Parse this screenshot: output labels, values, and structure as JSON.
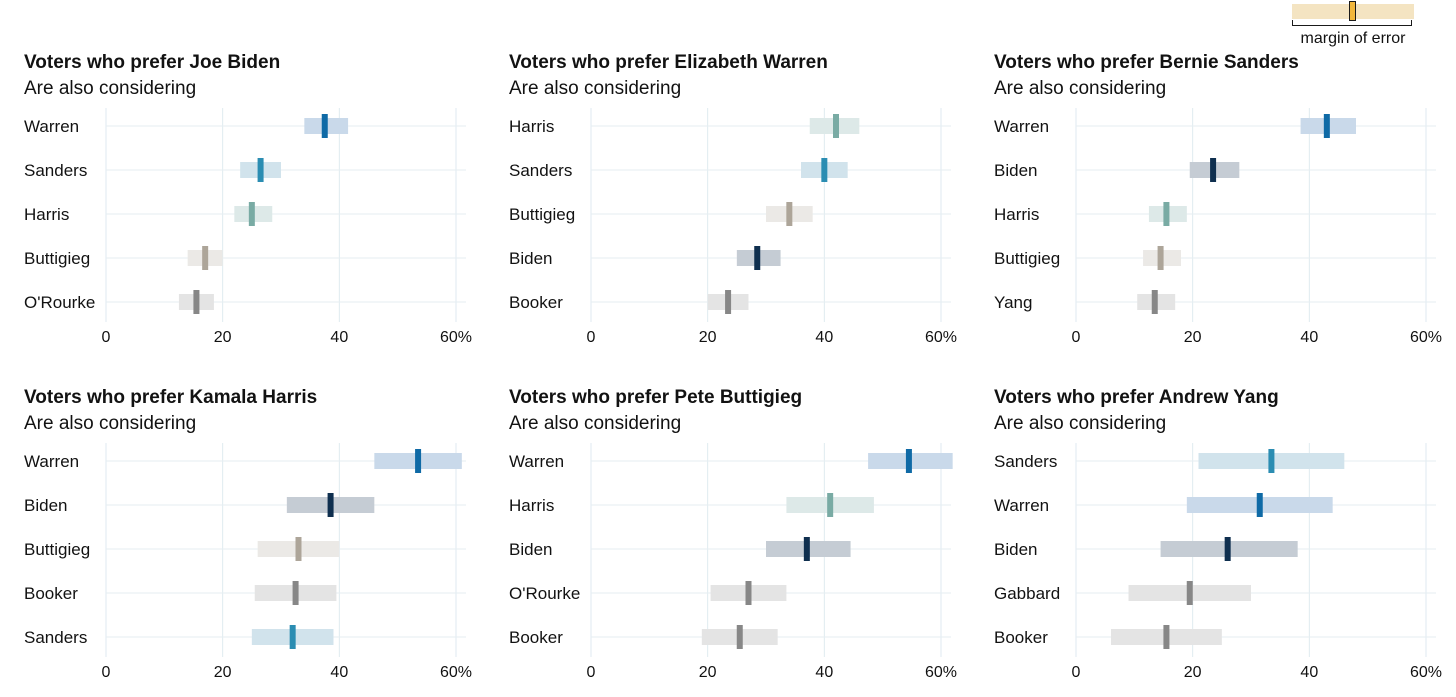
{
  "legend": {
    "label": "margin of error"
  },
  "chart_data": [
    {
      "type": "range-dot",
      "title": "Voters who prefer Joe Biden",
      "subtitle": "Are also considering",
      "xlim": [
        0,
        60
      ],
      "ticks": [
        "0",
        "20",
        "40",
        "60%"
      ],
      "rows": [
        {
          "name": "Warren",
          "value": 37.5,
          "low": 34.0,
          "high": 41.5,
          "color": "#0f6aa6",
          "band": "#c9d9ea"
        },
        {
          "name": "Sanders",
          "value": 26.5,
          "low": 23.0,
          "high": 30.0,
          "color": "#2b8db2",
          "band": "#d1e3ec"
        },
        {
          "name": "Harris",
          "value": 25.0,
          "low": 22.0,
          "high": 28.5,
          "color": "#79aba4",
          "band": "#dde9e8"
        },
        {
          "name": "Buttigieg",
          "value": 17.0,
          "low": 14.0,
          "high": 20.0,
          "color": "#ada599",
          "band": "#ebe9e6"
        },
        {
          "name": "O'Rourke",
          "value": 15.5,
          "low": 12.5,
          "high": 18.5,
          "color": "#878787",
          "band": "#e4e4e4"
        }
      ]
    },
    {
      "type": "range-dot",
      "title": "Voters who prefer Elizabeth Warren",
      "subtitle": "Are also considering",
      "xlim": [
        0,
        60
      ],
      "ticks": [
        "0",
        "20",
        "40",
        "60%"
      ],
      "rows": [
        {
          "name": "Harris",
          "value": 42.0,
          "low": 37.5,
          "high": 46.0,
          "color": "#79aba4",
          "band": "#dde9e8"
        },
        {
          "name": "Sanders",
          "value": 40.0,
          "low": 36.0,
          "high": 44.0,
          "color": "#2b8db2",
          "band": "#d1e3ec"
        },
        {
          "name": "Buttigieg",
          "value": 34.0,
          "low": 30.0,
          "high": 38.0,
          "color": "#ada599",
          "band": "#ebe9e6"
        },
        {
          "name": "Biden",
          "value": 28.5,
          "low": 25.0,
          "high": 32.5,
          "color": "#0f2f4f",
          "band": "#c5ccd4"
        },
        {
          "name": "Booker",
          "value": 23.5,
          "low": 20.0,
          "high": 27.0,
          "color": "#878787",
          "band": "#e4e4e4"
        }
      ]
    },
    {
      "type": "range-dot",
      "title": "Voters who prefer Bernie Sanders",
      "subtitle": "Are also considering",
      "xlim": [
        0,
        60
      ],
      "ticks": [
        "0",
        "20",
        "40",
        "60%"
      ],
      "rows": [
        {
          "name": "Warren",
          "value": 43.0,
          "low": 38.5,
          "high": 48.0,
          "color": "#0f6aa6",
          "band": "#c9d9ea"
        },
        {
          "name": "Biden",
          "value": 23.5,
          "low": 19.5,
          "high": 28.0,
          "color": "#0f2f4f",
          "band": "#c5ccd4"
        },
        {
          "name": "Harris",
          "value": 15.5,
          "low": 12.5,
          "high": 19.0,
          "color": "#79aba4",
          "band": "#dde9e8"
        },
        {
          "name": "Buttigieg",
          "value": 14.5,
          "low": 11.5,
          "high": 18.0,
          "color": "#ada599",
          "band": "#ebe9e6"
        },
        {
          "name": "Yang",
          "value": 13.5,
          "low": 10.5,
          "high": 17.0,
          "color": "#878787",
          "band": "#e4e4e4"
        }
      ]
    },
    {
      "type": "range-dot",
      "title": "Voters who prefer Kamala Harris",
      "subtitle": "Are also considering",
      "xlim": [
        0,
        60
      ],
      "ticks": [
        "0",
        "20",
        "40",
        "60%"
      ],
      "rows": [
        {
          "name": "Warren",
          "value": 53.5,
          "low": 46.0,
          "high": 61.0,
          "color": "#0f6aa6",
          "band": "#c9d9ea"
        },
        {
          "name": "Biden",
          "value": 38.5,
          "low": 31.0,
          "high": 46.0,
          "color": "#0f2f4f",
          "band": "#c5ccd4"
        },
        {
          "name": "Buttigieg",
          "value": 33.0,
          "low": 26.0,
          "high": 40.0,
          "color": "#ada599",
          "band": "#ebe9e6"
        },
        {
          "name": "Booker",
          "value": 32.5,
          "low": 25.5,
          "high": 39.5,
          "color": "#878787",
          "band": "#e4e4e4"
        },
        {
          "name": "Sanders",
          "value": 32.0,
          "low": 25.0,
          "high": 39.0,
          "color": "#2b8db2",
          "band": "#d1e3ec"
        }
      ]
    },
    {
      "type": "range-dot",
      "title": "Voters who prefer Pete Buttigieg",
      "subtitle": "Are also considering",
      "xlim": [
        0,
        60
      ],
      "ticks": [
        "0",
        "20",
        "40",
        "60%"
      ],
      "rows": [
        {
          "name": "Warren",
          "value": 54.5,
          "low": 47.5,
          "high": 62.0,
          "color": "#0f6aa6",
          "band": "#c9d9ea"
        },
        {
          "name": "Harris",
          "value": 41.0,
          "low": 33.5,
          "high": 48.5,
          "color": "#79aba4",
          "band": "#dde9e8"
        },
        {
          "name": "Biden",
          "value": 37.0,
          "low": 30.0,
          "high": 44.5,
          "color": "#0f2f4f",
          "band": "#c5ccd4"
        },
        {
          "name": "O'Rourke",
          "value": 27.0,
          "low": 20.5,
          "high": 33.5,
          "color": "#878787",
          "band": "#e4e4e4"
        },
        {
          "name": "Booker",
          "value": 25.5,
          "low": 19.0,
          "high": 32.0,
          "color": "#878787",
          "band": "#e4e4e4"
        }
      ]
    },
    {
      "type": "range-dot",
      "title": "Voters who prefer Andrew Yang",
      "subtitle": "Are also considering",
      "xlim": [
        0,
        60
      ],
      "ticks": [
        "0",
        "20",
        "40",
        "60%"
      ],
      "rows": [
        {
          "name": "Sanders",
          "value": 33.5,
          "low": 21.0,
          "high": 46.0,
          "color": "#2b8db2",
          "band": "#d1e3ec"
        },
        {
          "name": "Warren",
          "value": 31.5,
          "low": 19.0,
          "high": 44.0,
          "color": "#0f6aa6",
          "band": "#c9d9ea"
        },
        {
          "name": "Biden",
          "value": 26.0,
          "low": 14.5,
          "high": 38.0,
          "color": "#0f2f4f",
          "band": "#c5ccd4"
        },
        {
          "name": "Gabbard",
          "value": 19.5,
          "low": 9.0,
          "high": 30.0,
          "color": "#878787",
          "band": "#e4e4e4"
        },
        {
          "name": "Booker",
          "value": 15.5,
          "low": 6.0,
          "high": 25.0,
          "color": "#878787",
          "band": "#e4e4e4"
        }
      ]
    }
  ]
}
